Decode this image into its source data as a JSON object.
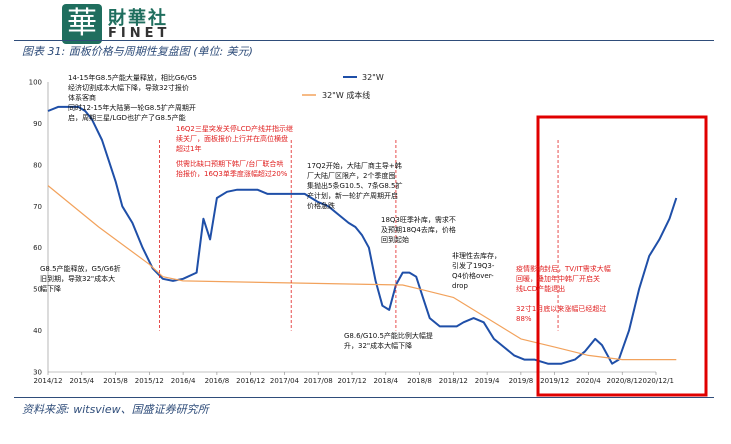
{
  "header": {
    "logo_mark": "華",
    "logo_cn": "財華社",
    "logo_en": "FINET",
    "fig_title": "图表 31: 面板价格与周期性复盘图 (单位: 美元)"
  },
  "source": "资料来源: witsview、国盛证券研究所",
  "chart_data": {
    "type": "line",
    "ylim": [
      30,
      100
    ],
    "yticks": [
      30,
      40,
      50,
      60,
      70,
      80,
      90,
      100
    ],
    "x_tick_labels": [
      "2014/12",
      "2015/4",
      "2015/8",
      "2015/12",
      "2016/4",
      "2016/8",
      "2016/12",
      "2017/04",
      "2017/08",
      "2017/12",
      "2018/4",
      "2018/8",
      "2018/12",
      "2019/4",
      "2019/8",
      "2019/12",
      "2020/4",
      "2020/8/1",
      "2020/12/1"
    ],
    "series": [
      {
        "name": "32\"W",
        "color": "#1f4fa8",
        "x": [
          0,
          0.3,
          0.6,
          0.9,
          1.1,
          1.3,
          1.6,
          1.8,
          2.0,
          2.2,
          2.5,
          2.8,
          3.1,
          3.4,
          3.7,
          4.0,
          4.4,
          4.6,
          4.8,
          5.0,
          5.3,
          5.6,
          5.9,
          6.2,
          6.5,
          6.8,
          7.2,
          7.6,
          8.0,
          8.3,
          8.6,
          8.9,
          9.1,
          9.3,
          9.5,
          9.7,
          9.9,
          10.1,
          10.3,
          10.5,
          10.7,
          10.9,
          11.1,
          11.3,
          11.6,
          11.9,
          12.1,
          12.3,
          12.6,
          12.9,
          13.2,
          13.5,
          13.8,
          14.1,
          14.4,
          14.8,
          15.2,
          15.6,
          15.9,
          16.2,
          16.4,
          16.7,
          16.9,
          17.2,
          17.5,
          17.8,
          18.1,
          18.4,
          18.6
        ],
        "y": [
          93,
          94,
          94,
          94,
          93,
          91,
          86,
          81,
          76,
          70,
          66,
          60,
          55,
          52.5,
          52,
          52.5,
          54,
          67,
          62,
          72,
          73.5,
          74,
          74,
          74,
          73,
          73,
          73,
          73,
          71,
          70,
          68,
          66,
          65,
          63,
          60,
          52,
          46,
          45,
          51,
          54,
          54,
          53,
          48,
          43,
          41,
          41,
          41,
          42,
          43,
          42,
          38,
          36,
          34,
          33,
          33,
          32,
          32,
          33,
          35,
          38,
          36.5,
          32,
          33,
          40,
          50,
          58,
          62,
          67,
          72
        ]
      },
      {
        "name": "32\"W 成本线",
        "color": "#f2a25c",
        "x": [
          0,
          1.5,
          3.0,
          3.4,
          4.0,
          10.5,
          11.0,
          12.0,
          12.8,
          13.4,
          14.0,
          15.0,
          16.0,
          17.0,
          18.6
        ],
        "y": [
          75,
          65,
          56,
          53,
          52,
          51,
          50,
          48,
          44,
          41,
          38,
          36,
          34,
          33,
          33
        ]
      }
    ],
    "legend": "top-right",
    "grid": false
  },
  "annotations": [
    {
      "color": "black",
      "text": "14-15年G8.5产能大量释放，相比G6/G5\n经济切割成本大幅下降，导致32寸报价\n体系客商\n同时12-15年大陆第一轮G8.5扩产周期开\n启，周期三星/LGD也扩产了G8.5产能"
    },
    {
      "color": "red",
      "text": "16Q2三星突发关停LCD产线并指示继\n续关厂，面板报价上行并在高位横盘\n超过1年"
    },
    {
      "color": "red",
      "text": "供需比缺口预期下韩厂/台厂联合哄\n抬报价，16Q3单季度涨幅超过20%"
    },
    {
      "color": "black",
      "text": "17Q2开始，大陆厂商主导+韩\n厂大陆厂区限产，2个季度囤\n集抛出5条G10.5、7条G8.5扩\n产计划，新一轮扩产周期开启\n价格急跌"
    },
    {
      "color": "black",
      "text": "18Q3旺季补库，需求不\n及预期18Q4去库，价格\n回到起始"
    },
    {
      "color": "black",
      "text": "非理性去库存，\n引发了19Q3-\nQ4价格over-\ndrop"
    },
    {
      "color": "red",
      "text": "疫情影响封后，TV/IT需求大幅\n回暖，叠加年中韩厂开启关\n线LCD产能退出\n\n32寸1月底以来涨幅已经超过\n88%"
    },
    {
      "color": "black",
      "text": "G8.5产能释放，G5/G6折\n旧到期，导致32\"成本大\n幅下降"
    },
    {
      "color": "black",
      "text": "G8.6/G10.5产能比例大幅提\n升，32\"成本大幅下降"
    }
  ]
}
